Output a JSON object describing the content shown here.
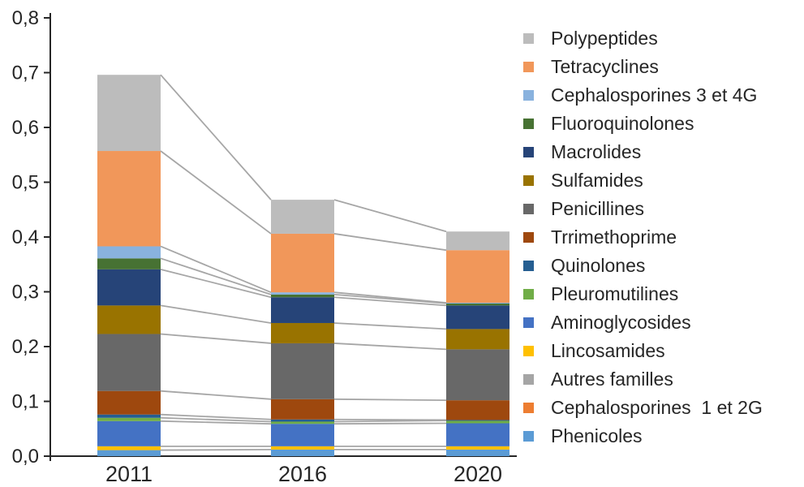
{
  "chart_data": {
    "type": "bar",
    "subtype": "stacked-column-with-series-connector-lines",
    "title": "",
    "xlabel": "",
    "ylabel": "",
    "categories": [
      "2011",
      "2016",
      "2020"
    ],
    "y_axis": {
      "min": 0,
      "max": 0.8,
      "step": 0.1,
      "decimal_separator": "comma",
      "tick_labels": [
        "0,0",
        "0,1",
        "0,2",
        "0,3",
        "0,4",
        "0,5",
        "0,6",
        "0,7",
        "0,8"
      ]
    },
    "grid": "off",
    "legend_position": "right",
    "series_bottom_to_top": [
      {
        "name": "Phenicoles",
        "color": "#5B9BD5",
        "values": [
          0.011,
          0.012,
          0.012
        ]
      },
      {
        "name": "Cephalosporines  1 et 2G",
        "color": "#ED7D31",
        "values": [
          0,
          0,
          0
        ]
      },
      {
        "name": "Autres familles",
        "color": "#A5A5A5",
        "values": [
          0,
          0,
          0
        ]
      },
      {
        "name": "Lincosamides",
        "color": "#FFC000",
        "values": [
          0.007,
          0.006,
          0.006
        ]
      },
      {
        "name": "Aminoglycosides",
        "color": "#4472C4",
        "values": [
          0.046,
          0.041,
          0.042
        ]
      },
      {
        "name": "Pleuromutilines",
        "color": "#70AD47",
        "values": [
          0.006,
          0.004,
          0.005
        ]
      },
      {
        "name": "Quinolones",
        "color": "#255E91",
        "values": [
          0.006,
          0.004,
          0.001
        ]
      },
      {
        "name": "Trrimethoprime",
        "color": "#9E480E",
        "values": [
          0.043,
          0.037,
          0.036
        ]
      },
      {
        "name": "Penicillines",
        "color": "#686868",
        "values": [
          0.104,
          0.102,
          0.093
        ]
      },
      {
        "name": "Sulfamides",
        "color": "#997300",
        "values": [
          0.052,
          0.037,
          0.037
        ]
      },
      {
        "name": "Macrolides",
        "color": "#264478",
        "values": [
          0.066,
          0.047,
          0.043
        ]
      },
      {
        "name": "Fluoroquinolones",
        "color": "#477233",
        "values": [
          0.02,
          0.005,
          0.004
        ]
      },
      {
        "name": "Cephalosporines 3 et 4G",
        "color": "#89B2DE",
        "values": [
          0.022,
          0.004,
          0.001
        ]
      },
      {
        "name": "Tetracyclines",
        "color": "#F1975A",
        "values": [
          0.174,
          0.107,
          0.096
        ]
      },
      {
        "name": "Polypeptides",
        "color": "#BCBCBC",
        "values": [
          0.139,
          0.062,
          0.034
        ]
      }
    ],
    "stack_totals": [
      0.696,
      0.468,
      0.41
    ],
    "legend_order_top_to_bottom": [
      "Polypeptides",
      "Tetracyclines",
      "Cephalosporines 3 et 4G",
      "Fluoroquinolones",
      "Macrolides",
      "Sulfamides",
      "Penicillines",
      "Trrimethoprime",
      "Quinolones",
      "Pleuromutilines",
      "Aminoglycosides",
      "Lincosamides",
      "Autres familles",
      "Cephalosporines  1 et 2G",
      "Phenicoles"
    ]
  },
  "colors": {
    "axis": "#262626",
    "text": "#262626",
    "connector_line": "#A6A6A6",
    "background": "#FFFFFF"
  }
}
